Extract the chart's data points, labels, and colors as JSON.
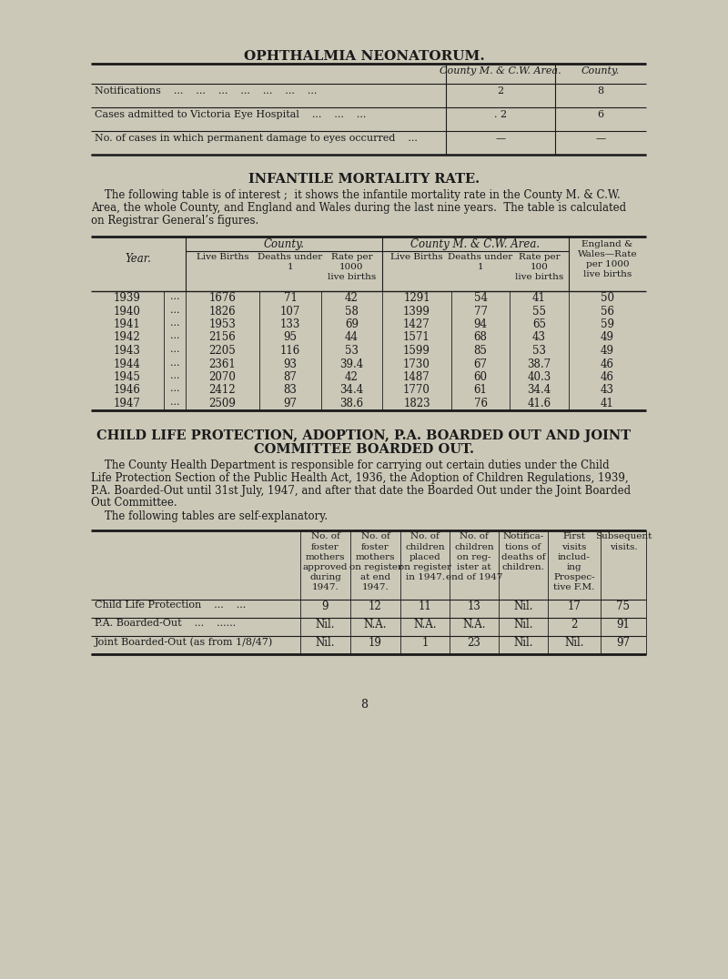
{
  "bg_color": "#cbc8b8",
  "text_color": "#1a1a1a",
  "page_title": "OPHTHALMIA NEONATORUM.",
  "t1_col_headers": [
    "County M. & C.W. Area.",
    "County."
  ],
  "t1_rows": [
    [
      "Notifications    ...    ...    ...    ...    ...    ...    ...",
      "2",
      "8"
    ],
    [
      "Cases admitted to Victoria Eye Hospital    ...    ...    ...",
      ". 2",
      "6"
    ],
    [
      "No. of cases in which permanent damage to eyes occurred    ...",
      "—",
      "—"
    ]
  ],
  "s2_title": "INFANTILE MORTALITY RATE.",
  "s2_para": [
    "    The following table is of interest ;  it shows the infantile mortality rate in the County M. & C.W.",
    "Area, the whole County, and England and Wales during the last nine years.  The table is calculated",
    "on Registrar General’s figures."
  ],
  "t2_county_hdr": "County.",
  "t2_area_hdr": "County M. & C.W. Area.",
  "t2_year_hdr": "Year.",
  "t2_sub_hdrs": [
    "Live Births",
    "Deaths under\n1",
    "Rate per\n1000\nlive births",
    "Live Births",
    "Deaths under\n1",
    "Rate per\n100\nlive births"
  ],
  "t2_ew_hdr": "England &\nWales—Rate\nper 1000\nlive births",
  "t2_data": [
    [
      "1939",
      "...",
      "1676",
      "71",
      "42",
      "1291",
      "54",
      "41",
      "50"
    ],
    [
      "1940",
      "...",
      "1826",
      "107",
      "58",
      "1399",
      "77",
      "55",
      "56"
    ],
    [
      "1941",
      "...",
      "1953",
      "133",
      "69",
      "1427",
      "94",
      "65",
      "59"
    ],
    [
      "1942",
      "...",
      "2156",
      "95",
      "44",
      "1571",
      "68",
      "43",
      "49"
    ],
    [
      "1943",
      "...",
      "2205",
      "116",
      "53",
      "1599",
      "85",
      "53",
      "49"
    ],
    [
      "1944",
      "...",
      "2361",
      "93",
      "39.4",
      "1730",
      "67",
      "38.7",
      "46"
    ],
    [
      "1945",
      "...",
      "2070",
      "87",
      "42",
      "1487",
      "60",
      "40.3",
      "46"
    ],
    [
      "1946",
      "...",
      "2412",
      "83",
      "34.4",
      "1770",
      "61",
      "34.4",
      "43"
    ],
    [
      "1947",
      "...",
      "2509",
      "97",
      "38.6",
      "1823",
      "76",
      "41.6",
      "41"
    ]
  ],
  "s3_title1": "CHILD LIFE PROTECTION, ADOPTION, P.A. BOARDED OUT AND JOINT",
  "s3_title2": "COMMITTEE BOARDED OUT.",
  "s3_para": [
    "    The County Health Department is responsible for carrying out certain duties under the Child",
    "Life Protection Section of the Public Health Act, 1936, the Adoption of Children Regulations, 1939,",
    "P.A. Boarded-Out until 31st July, 1947, and after that date the Boarded Out under the Joint Boarded",
    "Out Committee.",
    "    The following tables are self-explanatory."
  ],
  "t3_col_headers": [
    "No. of\nfoster\nmothers\napproved\nduring\n1947.",
    "No. of\nfoster\nmothers\non register\nat end\n1947.",
    "No. of\nchildren\nplaced\non register\nin 1947.",
    "No. of\nchildren\non reg-\nister at\nend of 1947",
    "Notifica-\ntions of\ndeaths of\nchildren.",
    "First\nvisits\ninclud-\ning\nProspec-\ntive F.M.",
    "Subsequent\nvisits."
  ],
  "t3_rows": [
    [
      "Child Life Protection    ...    ...",
      "9",
      "12",
      "11",
      "13",
      "Nil.",
      "17",
      "75"
    ],
    [
      "P.A. Boarded-Out    ...    ......",
      "Nil.",
      "N.A.",
      "N.A.",
      "N.A.",
      "Nil.",
      "2",
      "91"
    ],
    [
      "Joint Boarded-Out (as from 1/8/47)",
      "Nil.",
      "19",
      "1",
      "23",
      "Nil.",
      "Nil.",
      "97"
    ]
  ],
  "page_num": "8"
}
